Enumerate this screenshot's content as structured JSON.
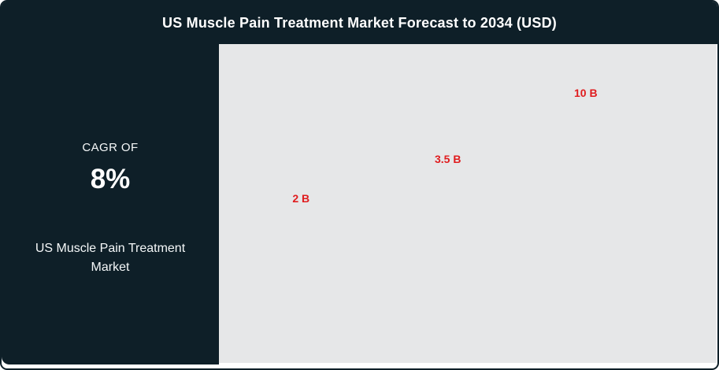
{
  "title": "US Muscle Pain Treatment Market Forecast to 2034 (USD)",
  "sidebar": {
    "cagr_label": "CAGR OF",
    "cagr_value": "8%",
    "market_name": "US Muscle Pain Treatment Market"
  },
  "colors": {
    "dark": "#0e1f28",
    "chart_bg": "#e6e7e8",
    "label_red": "#e01c1e",
    "text_white": "#f5f8f9"
  },
  "chart_data": {
    "type": "bar",
    "title": "US Muscle Pain Treatment Market Forecast to 2034 (USD)",
    "unit": "USD billions",
    "legend_position": "none",
    "grid": false,
    "axes_visible": false,
    "points": [
      {
        "label": "2 B",
        "value": 2,
        "x_pct": 16.5,
        "y_pct": 48.4
      },
      {
        "label": "3.5 B",
        "value": 3.5,
        "x_pct": 46.0,
        "y_pct": 36.0
      },
      {
        "label": "10 B",
        "value": 10,
        "x_pct": 73.7,
        "y_pct": 15.3
      }
    ]
  }
}
